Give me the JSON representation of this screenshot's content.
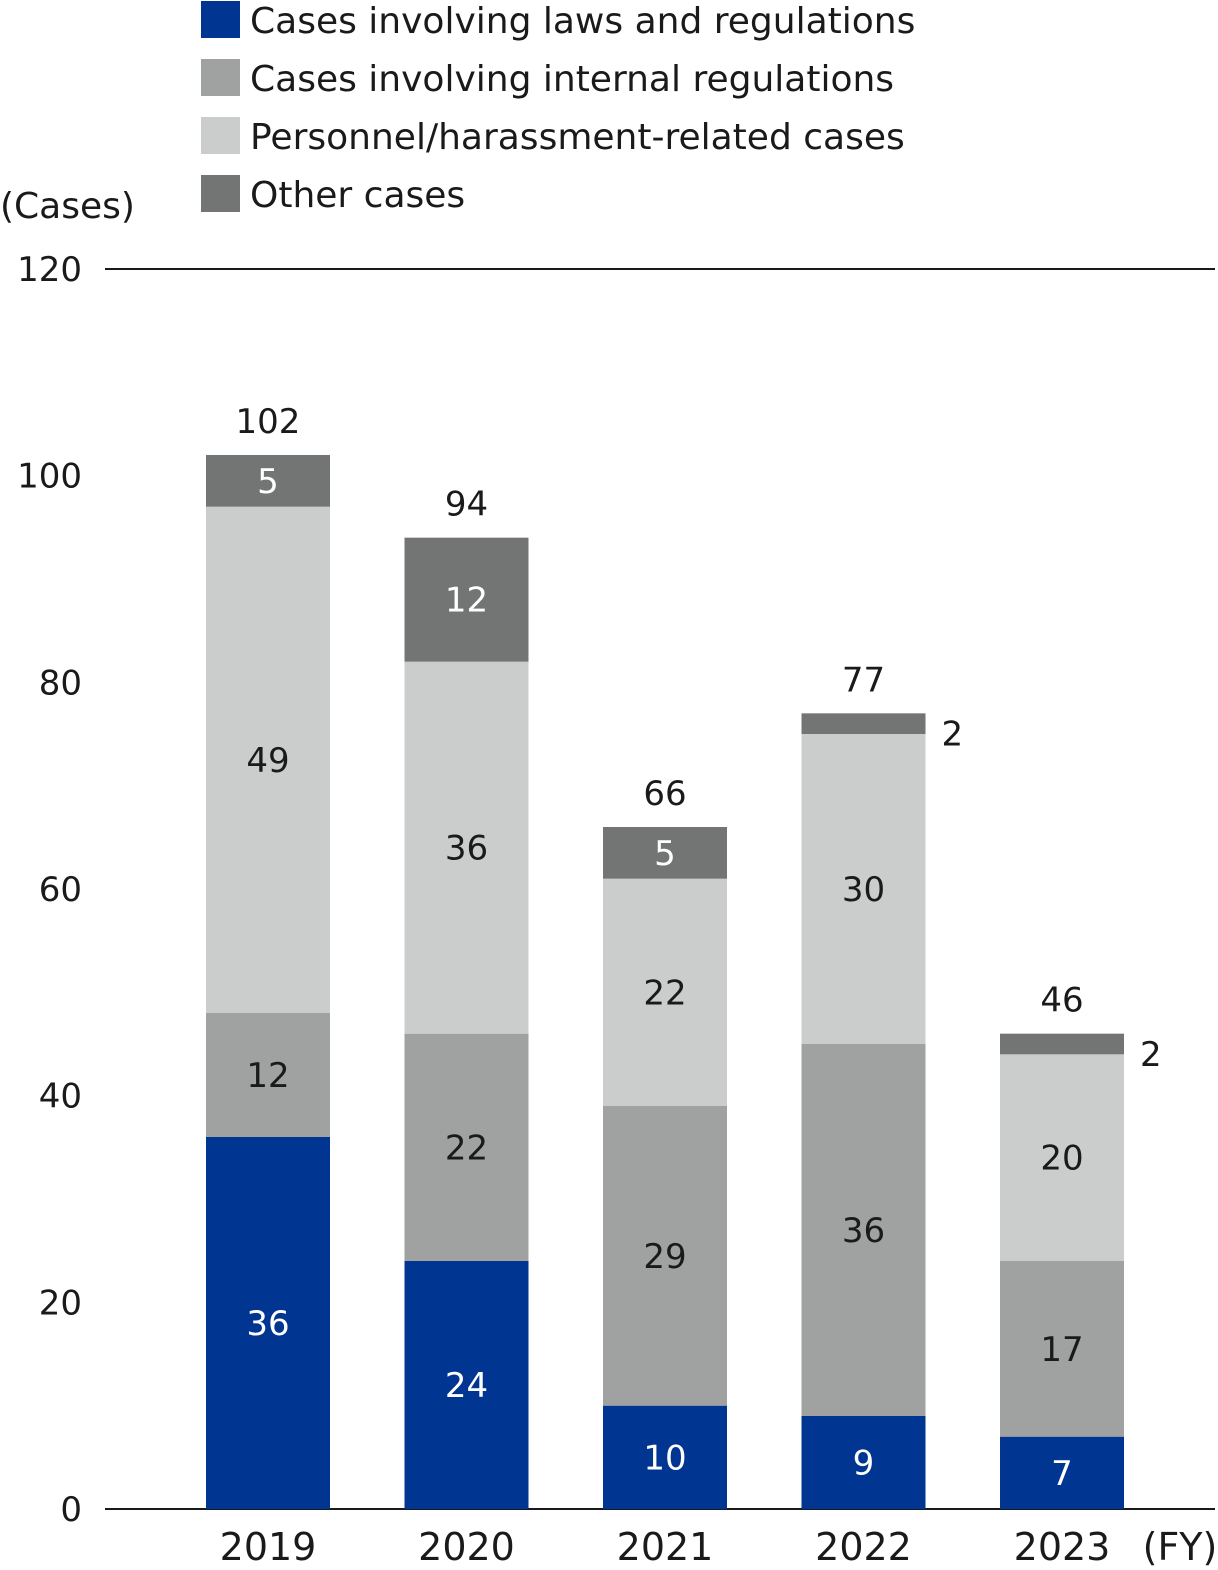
{
  "chart_data": {
    "type": "bar",
    "stacked": true,
    "title": "",
    "ylabel": "(Cases)",
    "xlabel": "(FY)",
    "ylim": [
      0,
      120
    ],
    "yticks": [
      0,
      20,
      40,
      60,
      80,
      100,
      120
    ],
    "categories": [
      "2019",
      "2020",
      "2021",
      "2022",
      "2023"
    ],
    "series": [
      {
        "name": "Cases involving laws and regulations",
        "color": "#003592",
        "label_color": "#ffffff",
        "values": [
          36,
          24,
          10,
          9,
          7
        ]
      },
      {
        "name": "Cases involving internal regulations",
        "color": "#a0a1a1",
        "label_color": "#1a1a1a",
        "values": [
          12,
          22,
          29,
          36,
          17
        ]
      },
      {
        "name": "Personnel/harassment-related cases",
        "color": "#cbcccc",
        "label_color": "#1a1a1a",
        "values": [
          49,
          36,
          22,
          30,
          20
        ]
      },
      {
        "name": "Other cases",
        "color": "#737474",
        "label_color": "#ffffff",
        "values": [
          5,
          12,
          5,
          2,
          2
        ]
      }
    ],
    "totals": [
      102,
      94,
      66,
      77,
      46
    ],
    "legend": "top-left",
    "grid": false
  }
}
